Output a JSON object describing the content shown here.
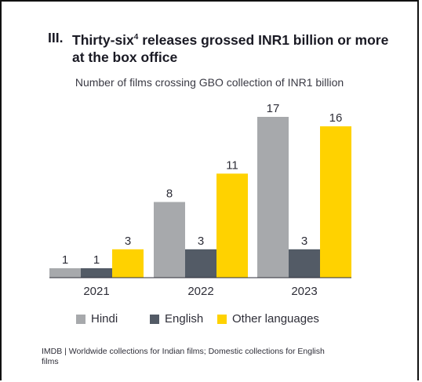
{
  "header": {
    "section_number": "III.",
    "title_part1": "Thirty-six",
    "title_superscript": "4",
    "title_part2": " releases grossed INR1 billion or more at the box office"
  },
  "chart_data": {
    "type": "bar",
    "title": "Number of films crossing GBO collection of INR1 billion",
    "categories": [
      "2021",
      "2022",
      "2023"
    ],
    "series": [
      {
        "name": "Hindi",
        "values": [
          1,
          8,
          17
        ],
        "color": "#a7a9ac"
      },
      {
        "name": "English",
        "values": [
          1,
          3,
          3
        ],
        "color": "#535b66"
      },
      {
        "name": "Other languages",
        "values": [
          3,
          11,
          16
        ],
        "color": "#ffd200"
      }
    ],
    "ylim": [
      0,
      17
    ],
    "grid": false,
    "legend_position": "bottom",
    "data_labels": true
  },
  "source": "IMDB | Worldwide collections for Indian films; Domestic collections for English films"
}
